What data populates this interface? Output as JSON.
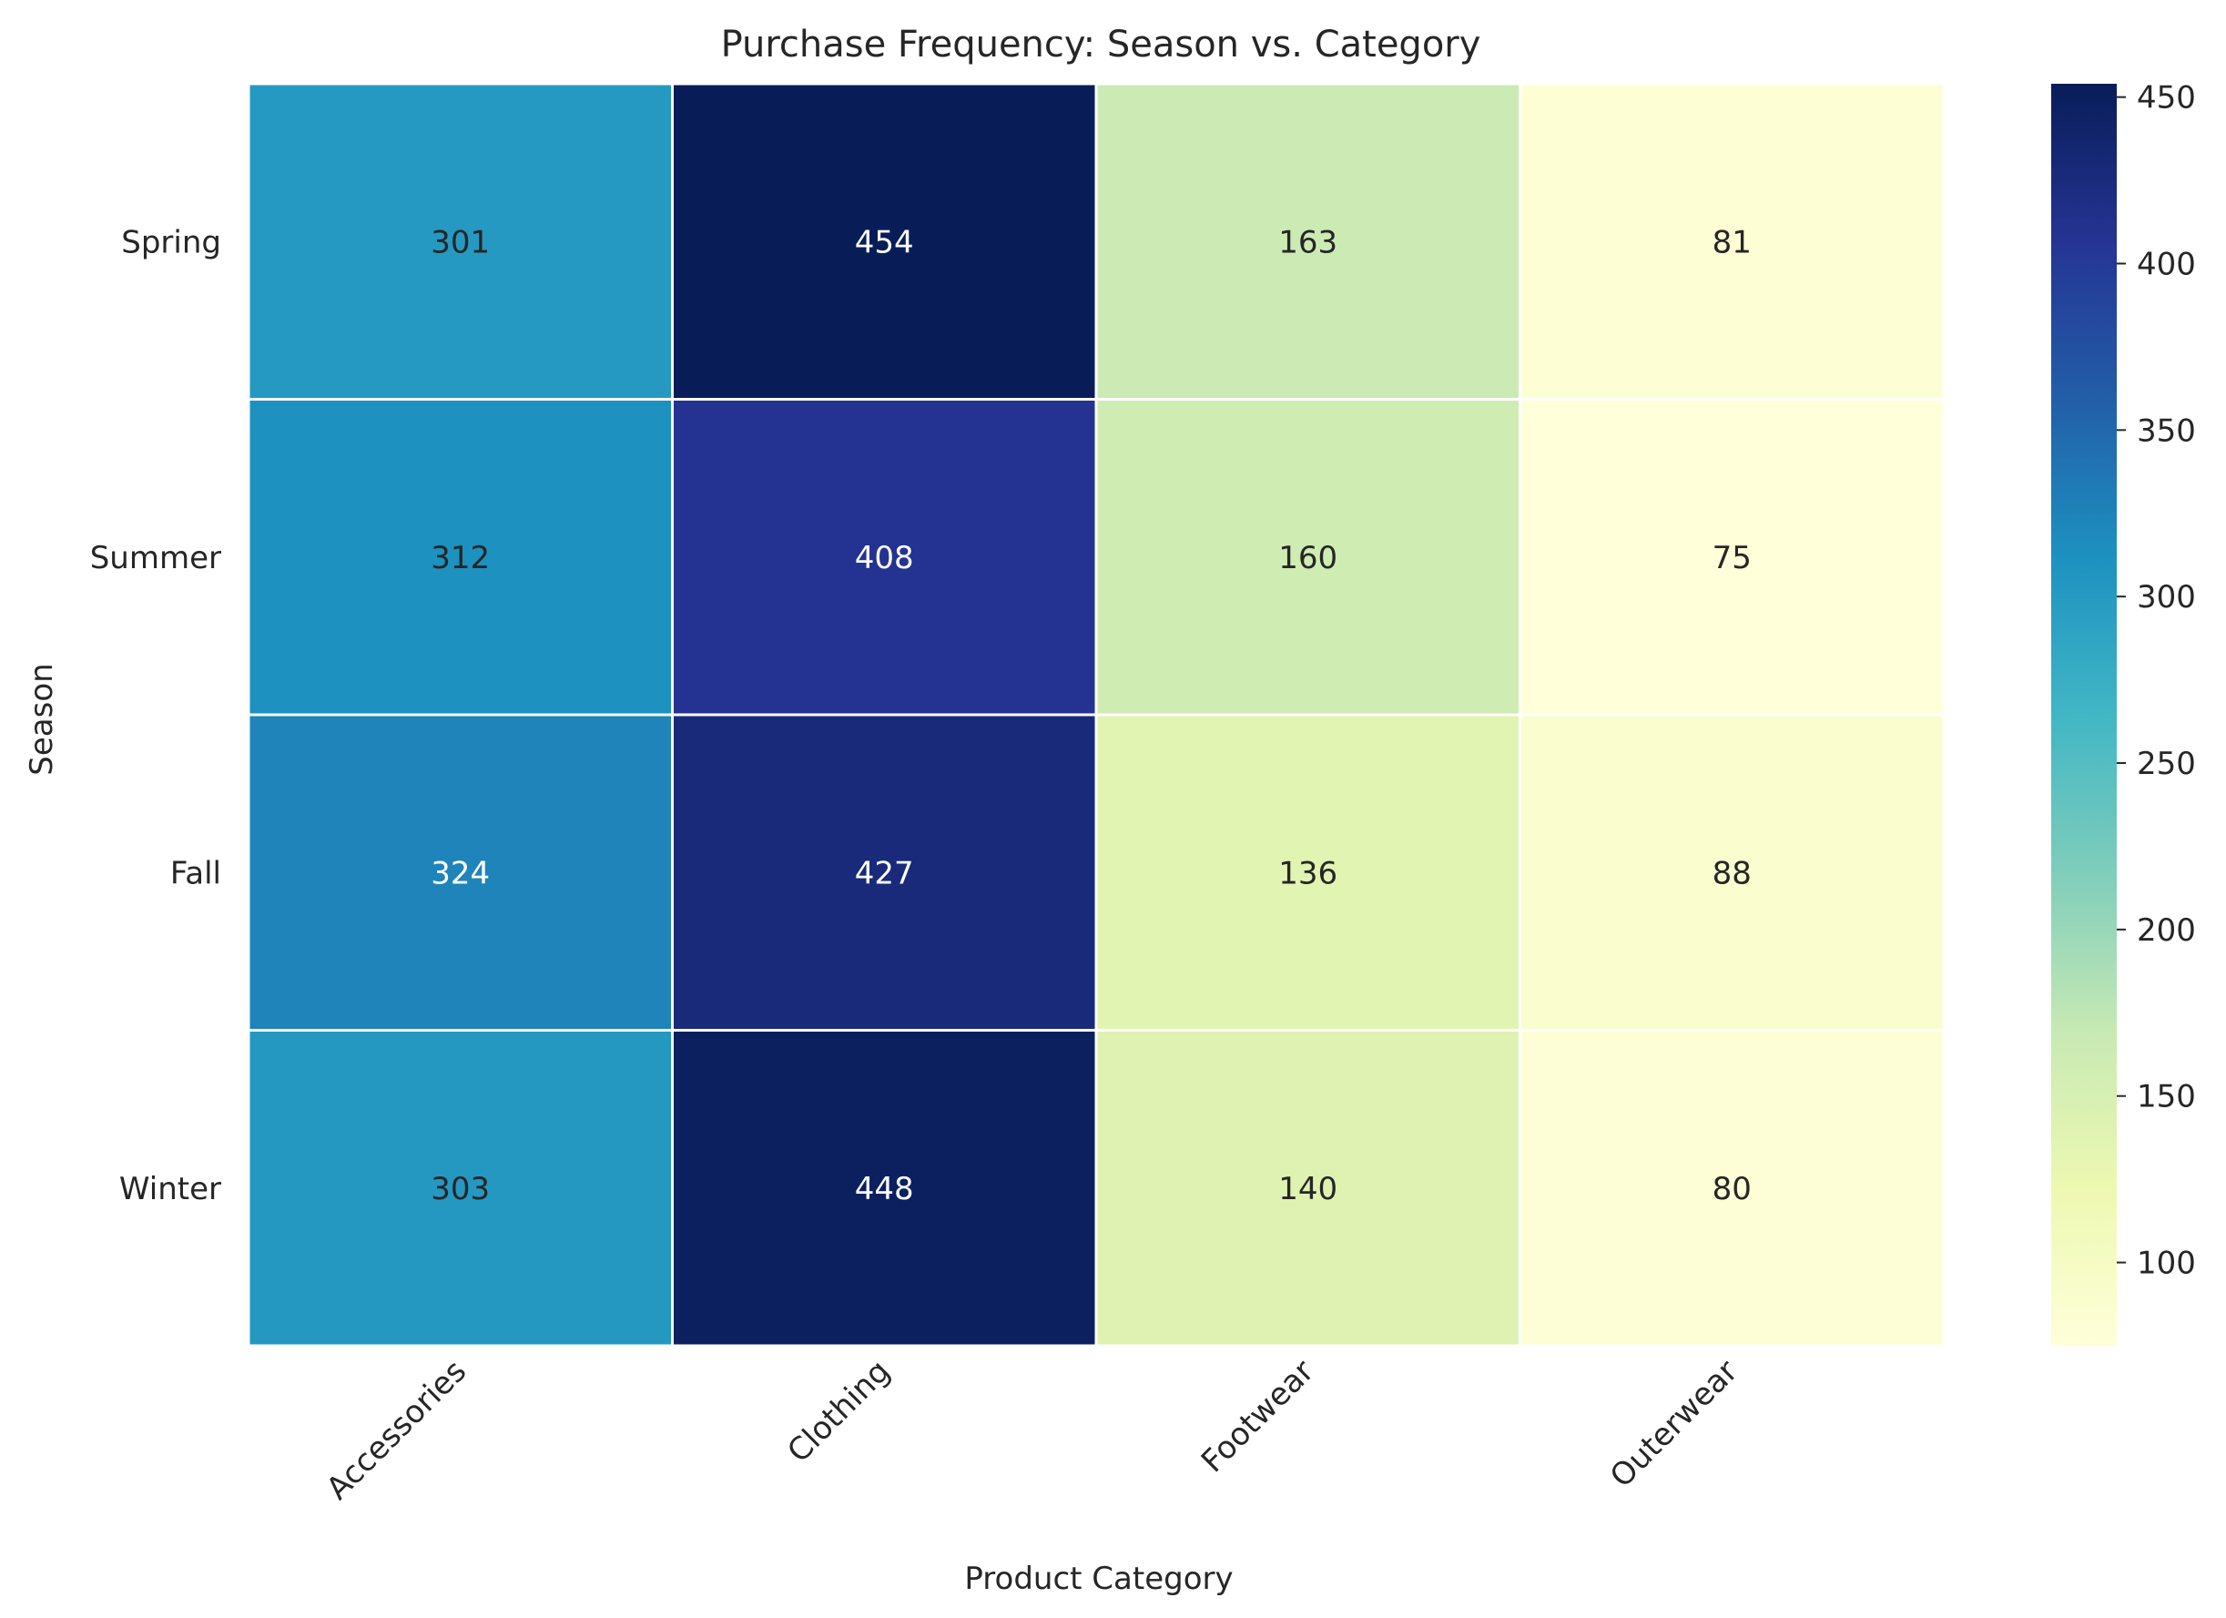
{
  "chart_data": {
    "type": "heatmap",
    "title": "Purchase Frequency: Season vs. Category",
    "xlabel": "Product Category",
    "ylabel": "Season",
    "x_categories": [
      "Accessories",
      "Clothing",
      "Footwear",
      "Outerwear"
    ],
    "y_categories": [
      "Spring",
      "Summer",
      "Fall",
      "Winter"
    ],
    "values": [
      [
        301,
        454,
        163,
        81
      ],
      [
        312,
        408,
        160,
        75
      ],
      [
        324,
        427,
        136,
        88
      ],
      [
        303,
        448,
        140,
        80
      ]
    ],
    "colorbar": {
      "vmin": 75,
      "vmax": 454,
      "ticks": [
        100,
        150,
        200,
        250,
        300,
        350,
        400,
        450
      ],
      "colormap": "YlGnBu"
    },
    "annotations": true,
    "grid": false
  },
  "colors": {
    "cell_border": "#ffffff",
    "text_dark": "#262626",
    "text_light": "#ffffff",
    "colormap_stops": [
      "#ffffd9",
      "#edf8b1",
      "#c7e9b4",
      "#7fcdbb",
      "#41b6c4",
      "#1d91c0",
      "#225ea8",
      "#253494",
      "#081d58"
    ]
  }
}
